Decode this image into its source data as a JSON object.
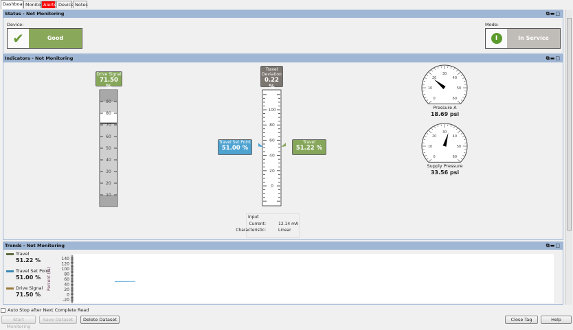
{
  "tabs": [
    {
      "label": "Dashboard",
      "active": true
    },
    {
      "label": "Monitor"
    },
    {
      "label": "Alerts",
      "alert": true
    },
    {
      "label": "Device"
    },
    {
      "label": "Notes"
    }
  ],
  "status": {
    "title": "Status - Not Monitoring",
    "device_label": "Device:",
    "device_value": "Good",
    "device_icon": "check-icon",
    "mode_label": "Mode:",
    "mode_value": "In Service",
    "mode_icon": "in-service-icon",
    "colors": {
      "good": "#8aa85a",
      "mode": "#c0bcb7"
    }
  },
  "indicators": {
    "title": "Indicators - Not Monitoring",
    "drive_signal": {
      "label": "Drive Signal",
      "value": "71.50 %",
      "level": 71.5,
      "ticks": [
        10,
        20,
        30,
        40,
        50,
        60,
        70,
        80,
        90
      ]
    },
    "travel_deviation": {
      "label": "Travel Deviation",
      "value": "0.22 %"
    },
    "travel_set_point": {
      "label": "Travel Set Point",
      "value": "51.00 %",
      "level": 51.0
    },
    "travel": {
      "label": "Travel",
      "value": "51.22 %",
      "level": 51.22,
      "ticks": [
        0,
        20,
        40,
        60,
        80,
        100
      ]
    },
    "input": {
      "title": "Input",
      "current_label": "Current:",
      "current_value": "12.14 mA",
      "char_label": "Characteristic:",
      "char_value": "Linear"
    },
    "gauges": [
      {
        "label": "Pressure A",
        "value": "18.69 psi",
        "level": 18.69
      },
      {
        "label": "Supply Pressure",
        "value": "33.56 psi",
        "level": 33.56
      }
    ],
    "gauge_ticks": [
      "0",
      "10",
      "20",
      "30",
      "40",
      "50",
      "60"
    ],
    "colors": {
      "green": "#86a65a",
      "blue": "#4fa3d1",
      "gray": "#7b7670"
    }
  },
  "trends": {
    "title": "Trends - Not Monitoring",
    "ylabel": "Percent (%)",
    "yticks": [
      "140",
      "120",
      "100",
      "80",
      "60",
      "40",
      "20",
      "0",
      "-20"
    ],
    "legend": [
      {
        "name": "Travel",
        "value": "51.22 %",
        "color": "#5d6b3c"
      },
      {
        "name": "Travel Set Point",
        "value": "51.00 %",
        "color": "#3a87b5"
      },
      {
        "name": "Drive Signal",
        "value": "71.50 %",
        "color": "#9a7a3a"
      }
    ],
    "series_travel_set_point": 51.0
  },
  "footer": {
    "auto_stop": "Auto Stop after Next Complete Read",
    "start": "Start Monitoring",
    "save": "Save Dataset",
    "delete": "Delete Dataset",
    "close": "Close Tag",
    "help": "Help"
  }
}
